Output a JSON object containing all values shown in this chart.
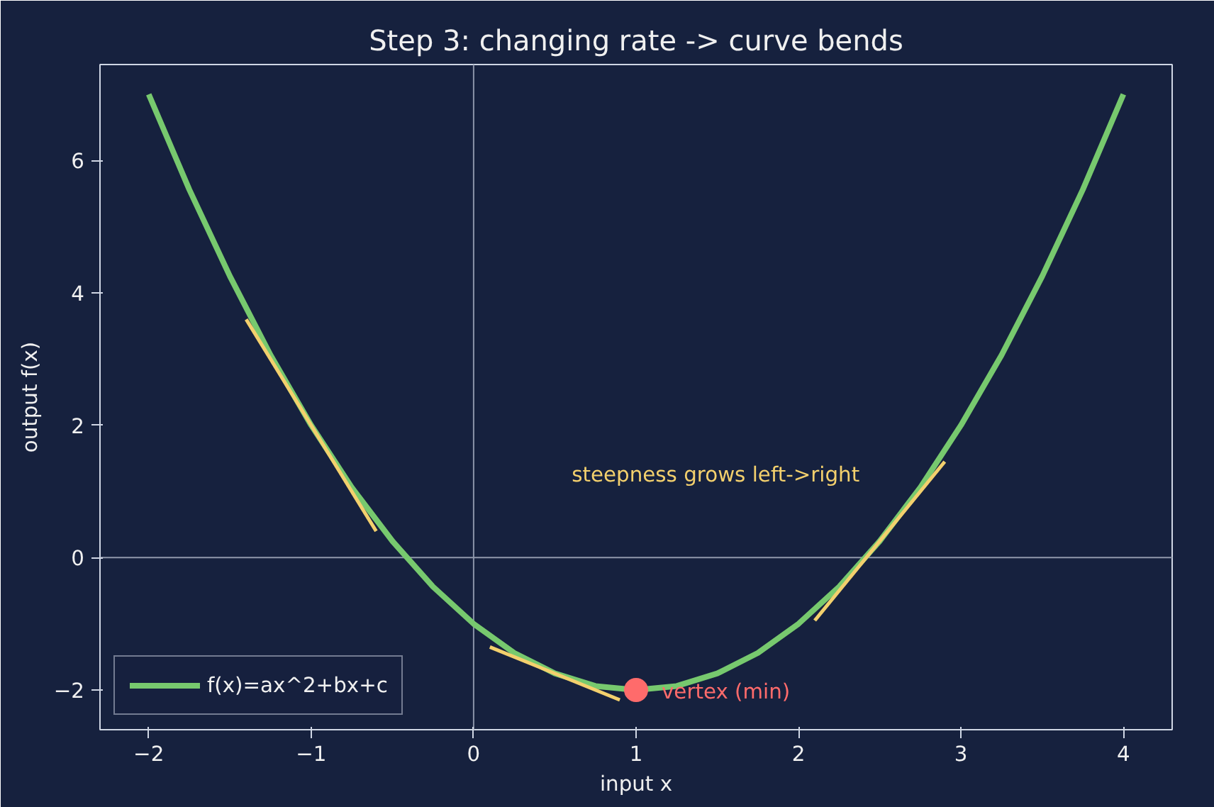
{
  "chart_data": {
    "type": "line",
    "title": "Step 3: changing rate -> curve bends",
    "xlabel": "input x",
    "ylabel": "output f(x)",
    "series": [
      {
        "name": "f(x)=ax^2+bx+c",
        "color": "#77c96e",
        "x": [
          -2,
          -1.75,
          -1.5,
          -1.25,
          -1,
          -0.75,
          -0.5,
          -0.25,
          0,
          0.25,
          0.5,
          0.75,
          1,
          1.25,
          1.5,
          1.75,
          2,
          2.25,
          2.5,
          2.75,
          3,
          3.25,
          3.5,
          3.75,
          4
        ],
        "values": [
          7,
          5.56,
          4.25,
          3.06,
          2,
          1.06,
          0.25,
          -0.44,
          -1,
          -1.44,
          -1.75,
          -1.94,
          -2,
          -1.94,
          -1.75,
          -1.44,
          -1,
          -0.44,
          0.25,
          1.06,
          2,
          3.06,
          4.25,
          5.56,
          7
        ]
      },
      {
        "color": "#f3d06d",
        "x": [
          -1.4,
          -0.6
        ],
        "values": [
          3.6,
          0.4
        ]
      },
      {
        "color": "#f3d06d",
        "x": [
          0.1,
          0.9
        ],
        "values": [
          -1.35,
          -2.15
        ]
      },
      {
        "color": "#f3d06d",
        "x": [
          2.1,
          2.9
        ],
        "values": [
          -0.95,
          1.45
        ]
      },
      {
        "type": "scatter",
        "marker": "circle",
        "color": "#ff6b6b",
        "x": [
          1
        ],
        "values": [
          -2
        ]
      }
    ],
    "annotations": [
      "steepness grows left->right",
      {
        "text": "vertex (min)",
        "x": 1,
        "y": -2
      }
    ],
    "ref_lines": [
      {
        "axis": "x",
        "value": 0,
        "color": "#8a93a8"
      },
      {
        "axis": "y",
        "value": 0,
        "color": "#9098ac"
      }
    ],
    "xlim": [
      -2.3,
      4.3
    ],
    "ylim": [
      -2.6,
      7.45
    ],
    "xticks": [
      {
        "value": -2,
        "label": "−2"
      },
      {
        "value": -1,
        "label": "−1"
      },
      0,
      1,
      2,
      3,
      4
    ],
    "yticks": [
      {
        "value": -2,
        "label": "−2"
      },
      0,
      2,
      4,
      6
    ],
    "grid": false,
    "legend": "bottom left"
  }
}
